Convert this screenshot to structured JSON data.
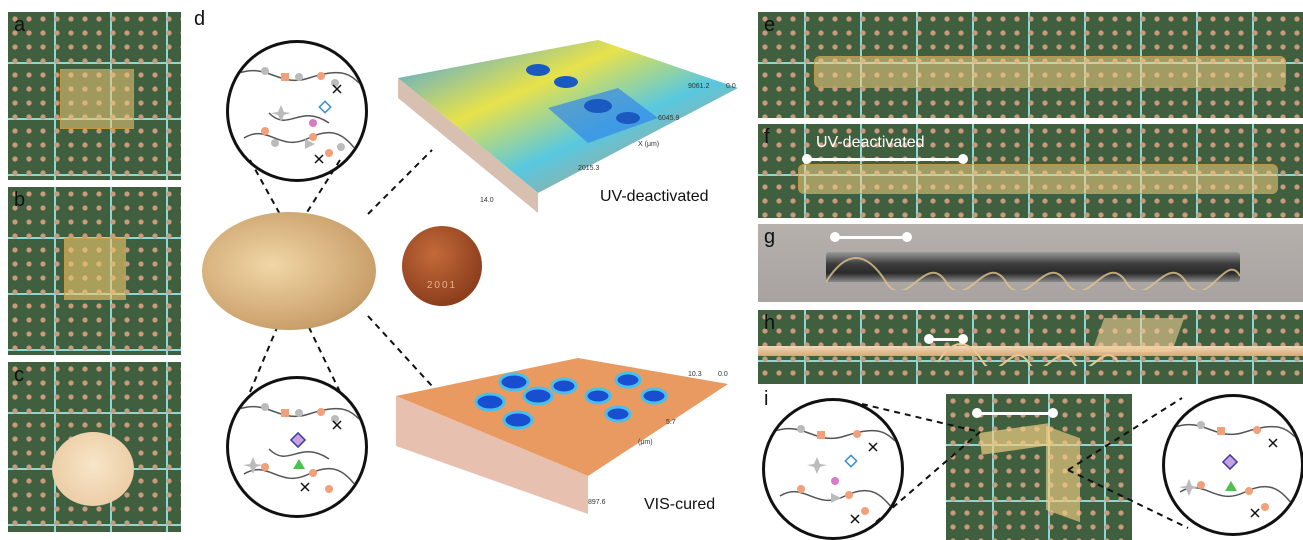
{
  "panel_labels": {
    "a": "a",
    "b": "b",
    "c": "c",
    "d": "d",
    "e": "e",
    "f": "f",
    "g": "g",
    "h": "h",
    "i": "i"
  },
  "annotations": {
    "uv_deactivated": "UV-deactivated",
    "vis_cured": "VIS-cured",
    "f_uv_deactivated": "UV-deactivated"
  },
  "coin_text": "2001",
  "profilometry_top": {
    "ticks": [
      "9061.2",
      "0.0",
      "6045.9",
      "2015.3",
      "14.0"
    ],
    "axis_label": "X (μm)"
  },
  "profilometry_bottom": {
    "ticks": [
      "10.3",
      "0.0",
      "5.7",
      "897.6"
    ],
    "axis_label": "(μm)"
  },
  "icons": [
    "star-icon",
    "diamond-icon",
    "triangle-icon",
    "circle-icon",
    "cross-icon"
  ],
  "colors": {
    "mat": "#3f5f3e",
    "grid": "#8fd7d2",
    "film": "#eec878",
    "bead_grey": "#bbbbbb",
    "bead_salmon": "#f2a07a"
  }
}
